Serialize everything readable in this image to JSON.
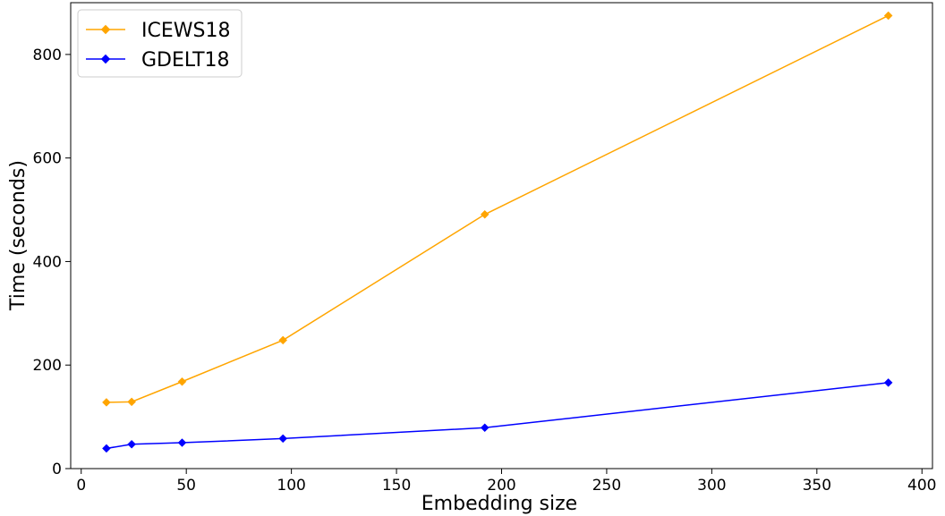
{
  "chart_data": {
    "type": "line",
    "xlabel": "Embedding size",
    "ylabel": "Time (seconds)",
    "xlim": [
      -5,
      405
    ],
    "ylim": [
      0,
      900
    ],
    "xticks": [
      0,
      50,
      100,
      150,
      200,
      250,
      300,
      350,
      400
    ],
    "yticks": [
      0,
      200,
      400,
      600,
      800
    ],
    "x": [
      12,
      24,
      48,
      96,
      192,
      384
    ],
    "grid": false,
    "legend": "top-left",
    "series": [
      {
        "name": "ICEWS18",
        "color": "#FFA500",
        "marker": "diamond",
        "values": [
          128,
          129,
          168,
          248,
          491,
          875
        ]
      },
      {
        "name": "GDELT18",
        "color": "#0000FF",
        "marker": "diamond",
        "values": [
          39,
          47,
          50,
          58,
          79,
          166
        ]
      }
    ]
  }
}
